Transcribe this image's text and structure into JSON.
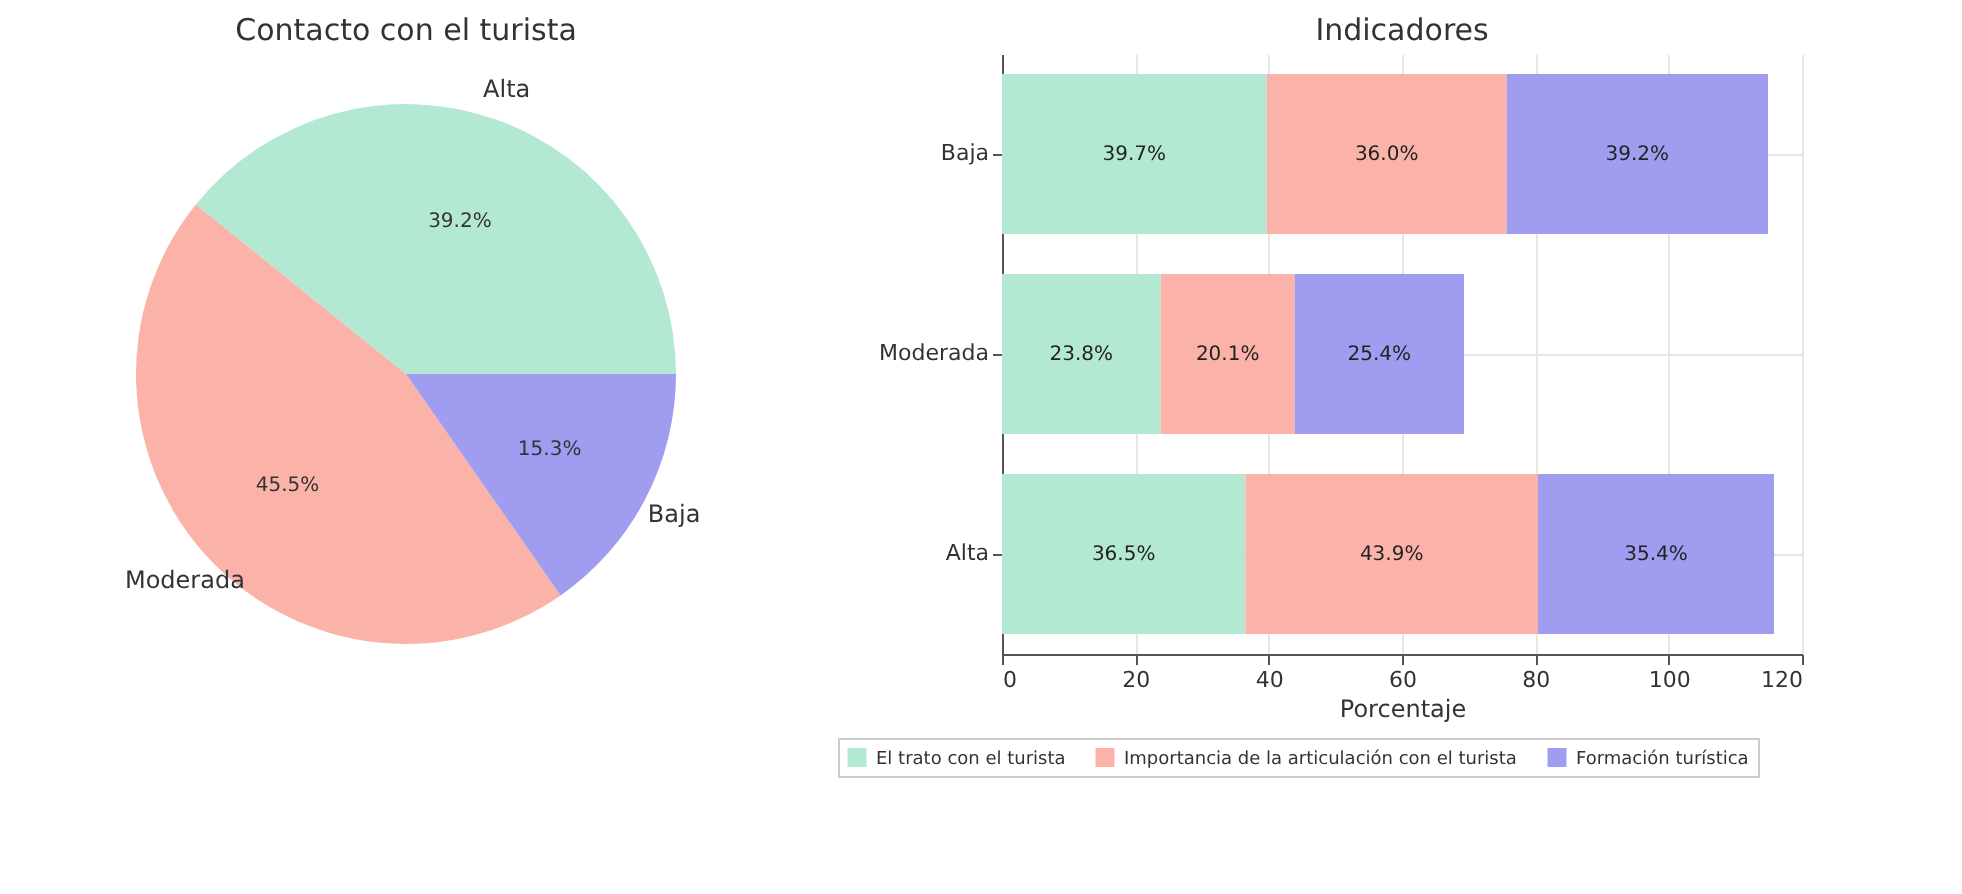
{
  "chart_data": [
    {
      "type": "pie",
      "title": "Contacto con el turista",
      "categories": [
        "Alta",
        "Moderada",
        "Baja"
      ],
      "values": [
        39.2,
        45.5,
        15.3
      ],
      "colors": [
        "#b3e9d3",
        "#fbb3a9",
        "#a09cf0"
      ],
      "value_labels": [
        "39.2%",
        "45.5%",
        "15.3%"
      ]
    },
    {
      "type": "bar",
      "orientation": "horizontal",
      "stacked": true,
      "title": "Indicadores",
      "xlabel": "Porcentaje",
      "categories": [
        "Baja",
        "Moderada",
        "Alta"
      ],
      "xlim": [
        0,
        120
      ],
      "xticks": [
        0,
        20,
        40,
        60,
        80,
        100,
        120
      ],
      "grid": true,
      "legend": "bottom",
      "series": [
        {
          "name": "El trato con el turista",
          "color": "#b3e9d3",
          "values": [
            39.7,
            23.8,
            36.5
          ],
          "value_labels": [
            "39.7%",
            "23.8%",
            "36.5%"
          ]
        },
        {
          "name": "Importancia de la articulación con el turista",
          "color": "#fbb3a9",
          "values": [
            36.0,
            20.1,
            43.9
          ],
          "value_labels": [
            "36.0%",
            "20.1%",
            "43.9%"
          ]
        },
        {
          "name": "Formación turística",
          "color": "#a09cf0",
          "values": [
            39.2,
            25.4,
            35.4
          ],
          "value_labels": [
            "39.2%",
            "25.4%",
            "35.4%"
          ]
        }
      ]
    }
  ]
}
